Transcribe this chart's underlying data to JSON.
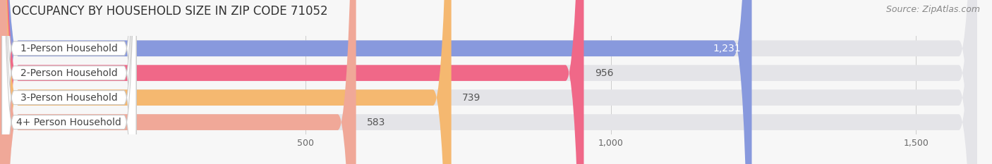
{
  "title": "OCCUPANCY BY HOUSEHOLD SIZE IN ZIP CODE 71052",
  "source": "Source: ZipAtlas.com",
  "categories": [
    "1-Person Household",
    "2-Person Household",
    "3-Person Household",
    "4+ Person Household"
  ],
  "values": [
    1231,
    956,
    739,
    583
  ],
  "bar_colors": [
    "#8899dd",
    "#f06888",
    "#f5b870",
    "#f0a898"
  ],
  "background_color": "#f7f7f7",
  "xlim_max": 1600,
  "xtick_vals": [
    500,
    1000,
    1500
  ],
  "xtick_labels": [
    "500",
    "1,000",
    "1,500"
  ],
  "title_fontsize": 12,
  "source_fontsize": 9,
  "label_fontsize": 10,
  "value_fontsize": 10,
  "tick_fontsize": 9,
  "bar_height": 0.65,
  "bar_gap": 0.1
}
